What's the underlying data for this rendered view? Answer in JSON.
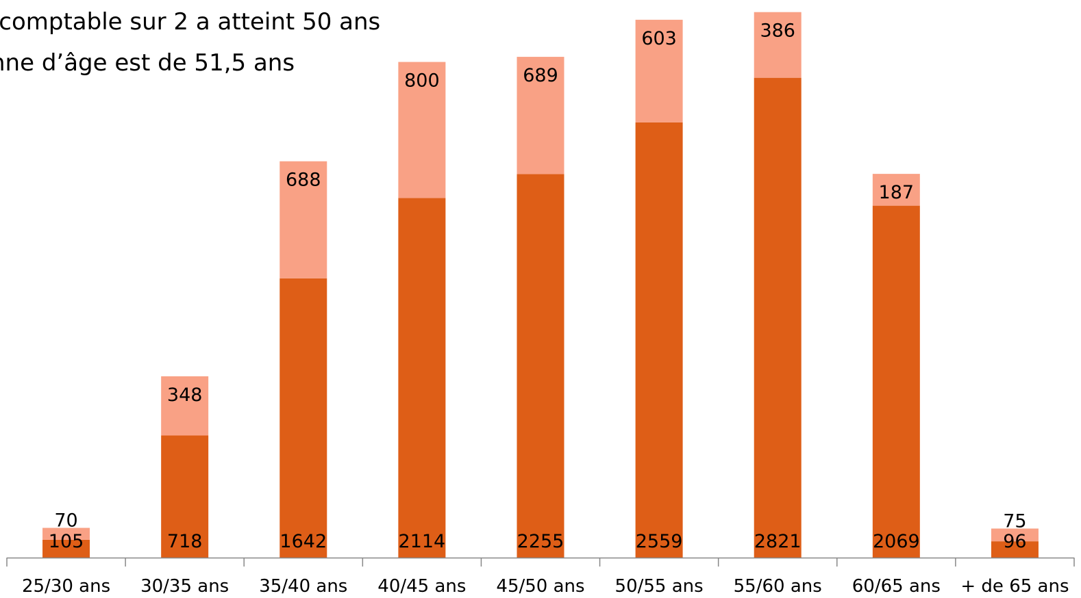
{
  "header": {
    "line1": "-comptable sur 2 a atteint 50 ans",
    "line2": "nne d’âge est de 51,5 ans"
  },
  "chart_data": {
    "type": "bar",
    "stacked": true,
    "categories": [
      "25/30 ans",
      "30/35 ans",
      "35/40 ans",
      "40/45 ans",
      "45/50 ans",
      "50/55 ans",
      "55/60 ans",
      "60/65 ans",
      "+ de 65 ans"
    ],
    "series": [
      {
        "values": [
          105,
          718,
          1642,
          2114,
          2255,
          2559,
          2821,
          2069,
          96
        ],
        "color": "#DE5E17"
      },
      {
        "values": [
          70,
          348,
          688,
          800,
          689,
          603,
          386,
          187,
          75
        ],
        "color": "#F9A185"
      }
    ],
    "ylim": [
      0,
      3250
    ],
    "grid": false,
    "legend": "none"
  }
}
